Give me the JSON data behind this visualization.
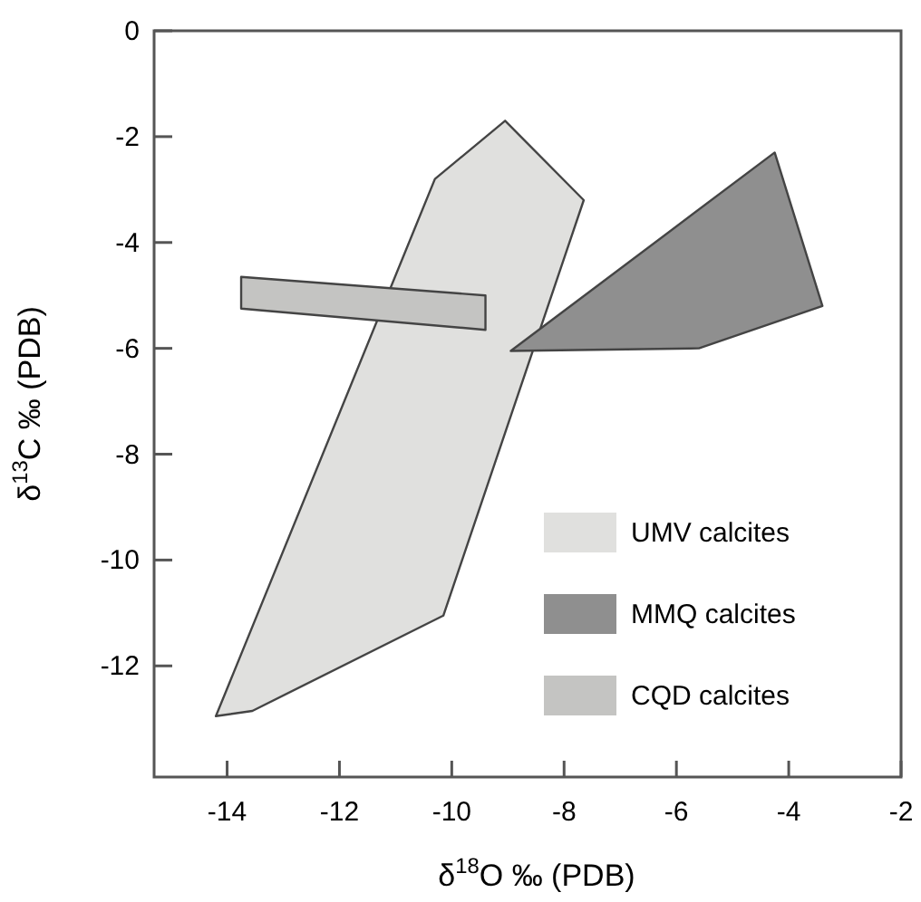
{
  "chart_data": {
    "type": "area",
    "xlabel": "δ$^{18}$O ‰ (PDB)",
    "ylabel": "δ$^{13}$C ‰ (PDB)",
    "xlim": [
      -15.3,
      -2
    ],
    "ylim": [
      -14.1,
      0
    ],
    "xticks": [
      -14,
      -12,
      -10,
      -8,
      -6,
      -4,
      -2
    ],
    "yticks": [
      0,
      -2,
      -4,
      -6,
      -8,
      -10,
      -12
    ],
    "grid": false,
    "legend": "bottom right",
    "series": [
      {
        "name": "UMV calcites",
        "color": "#e0e0de",
        "x": [
          -14.2,
          -13.55,
          -10.15,
          -7.65,
          -9.05,
          -10.3
        ],
        "values": [
          -12.95,
          -12.85,
          -11.05,
          -3.2,
          -1.7,
          -2.8
        ]
      },
      {
        "name": "MMQ calcites",
        "color": "#8f8f8f",
        "x": [
          -8.95,
          -4.25,
          -3.4,
          -5.6
        ],
        "values": [
          -6.05,
          -2.3,
          -5.2,
          -6.0
        ]
      },
      {
        "name": "CQD calcites",
        "color": "#c4c4c2",
        "x": [
          -13.75,
          -9.4,
          -9.4,
          -13.75
        ],
        "values": [
          -4.65,
          -5.0,
          -5.65,
          -5.25
        ]
      }
    ]
  }
}
